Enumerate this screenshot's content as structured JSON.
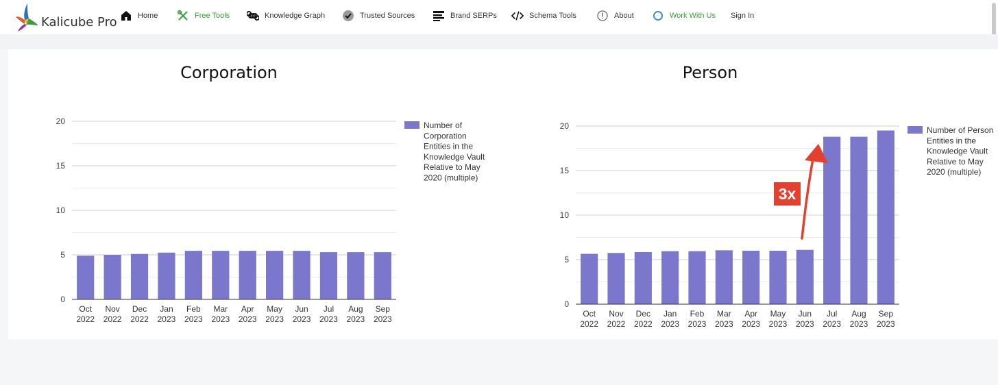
{
  "brand": {
    "name": "Kalicube Pro"
  },
  "nav": {
    "items": [
      {
        "label": "Home",
        "icon": "home-icon"
      },
      {
        "label": "Free Tools",
        "icon": "tools-icon"
      },
      {
        "label": "Knowledge Graph",
        "icon": "command-icon"
      },
      {
        "label": "Trusted Sources",
        "icon": "check-circle-icon"
      },
      {
        "label": "Brand SERPs",
        "icon": "list-icon"
      },
      {
        "label": "Schema Tools",
        "icon": "code-icon"
      },
      {
        "label": "About",
        "icon": "info-icon"
      },
      {
        "label": "Work With Us",
        "icon": "circle-icon"
      },
      {
        "label": "Sign In"
      }
    ],
    "accent_color": "#3a9c3a"
  },
  "annotation": {
    "label": "3x",
    "color": "#e3402e"
  },
  "chart_data": [
    {
      "type": "bar",
      "title": "Corporation",
      "categories": [
        "Oct 2022",
        "Nov 2022",
        "Dec 2022",
        "Jan 2023",
        "Feb 2023",
        "Mar 2023",
        "Apr 2023",
        "May 2023",
        "Jun 2023",
        "Jul 2023",
        "Aug 2023",
        "Sep 2023"
      ],
      "series": [
        {
          "name": "Number of Corporation Entities in the Knowledge Vault Relative to May 2020 (multiple)",
          "values": [
            4.9,
            5.0,
            5.1,
            5.25,
            5.45,
            5.45,
            5.45,
            5.45,
            5.45,
            5.3,
            5.3,
            5.3
          ],
          "color": "#7b77cc"
        }
      ],
      "ylim": [
        0,
        20
      ],
      "yticks": [
        "0",
        "5",
        "10",
        "15",
        "20"
      ],
      "legend": "right",
      "grid": true
    },
    {
      "type": "bar",
      "title": "Person",
      "categories": [
        "Oct 2022",
        "Nov 2022",
        "Dec 2022",
        "Jan 2023",
        "Feb 2023",
        "Mar 2023",
        "Apr 2023",
        "May 2023",
        "Jun 2023",
        "Jul 2023",
        "Aug 2023",
        "Sep 2023"
      ],
      "series": [
        {
          "name": "Number of Person Entities in the Knowledge Vault Relative to May 2020 (multiple)",
          "values": [
            5.65,
            5.75,
            5.85,
            5.95,
            5.95,
            6.05,
            6.0,
            6.0,
            6.1,
            18.8,
            18.8,
            19.5
          ],
          "color": "#7b77cc"
        }
      ],
      "ylim": [
        0,
        20
      ],
      "yticks": [
        "0",
        "5",
        "10",
        "15",
        "20"
      ],
      "legend": "right",
      "grid": true
    }
  ]
}
